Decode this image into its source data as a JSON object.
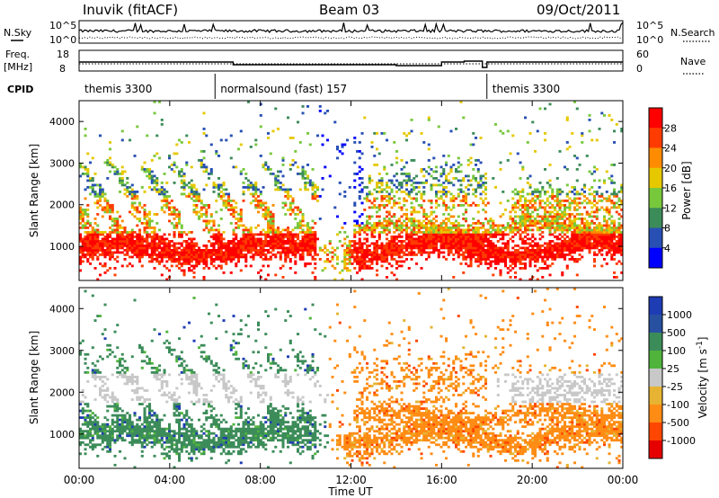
{
  "header": {
    "station": "Inuvik (fitACF)",
    "beam": "Beam 03",
    "date": "09/Oct/2011"
  },
  "top_panels": {
    "nsky_label": "N.Sky",
    "nsky_ticks": [
      "10^5",
      "10^0"
    ],
    "nsearch_label": "N.Search",
    "nsearch_ticks": [
      "10^5",
      "10^0"
    ],
    "freq_label_1": "Freq.",
    "freq_label_2": "[MHz]",
    "freq_ticks": [
      "18",
      "8"
    ],
    "nave_label": "Nave",
    "nave_ticks": [
      "60",
      "0"
    ],
    "cpid_label": "CPID",
    "cpid_segments": [
      {
        "name": "themis 3300",
        "start_hour": 0,
        "end_hour": 6
      },
      {
        "name": "normalsound (fast) 157",
        "start_hour": 6,
        "end_hour": 18
      },
      {
        "name": "themis 3300",
        "start_hour": 18,
        "end_hour": 24
      }
    ]
  },
  "chart_data": [
    {
      "type": "heatmap",
      "panel": "power",
      "ylabel": "Slant Range [km]",
      "yticks": [
        "1000",
        "2000",
        "3000",
        "4000"
      ],
      "ylim": [
        180,
        4500
      ],
      "colorbar_label": "Power [dB]",
      "colorbar_ticks": [
        "4",
        "8",
        "12",
        "16",
        "20",
        "24",
        "28"
      ],
      "colors": [
        "#0000ff",
        "#2850b4",
        "#3c8c5a",
        "#78c83c",
        "#e6c800",
        "#ff8c00",
        "#ff3c00",
        "#ff0000"
      ]
    },
    {
      "type": "heatmap",
      "panel": "velocity",
      "ylabel": "Slant Range [km]",
      "yticks": [
        "1000",
        "2000",
        "3000",
        "4000"
      ],
      "ylim": [
        180,
        4500
      ],
      "colorbar_label": "Velocity [m s^-1]",
      "colorbar_ticks": [
        "1000",
        "500",
        "100",
        "25",
        "-25",
        "-100",
        "-500",
        "-1000"
      ],
      "colors": [
        "#1e3cb4",
        "#2850a0",
        "#3c8c5a",
        "#50b43c",
        "#c8c8c8",
        "#e6b432",
        "#ff8c14",
        "#ff4600",
        "#e60000"
      ]
    }
  ],
  "xaxis": {
    "label": "Time UT",
    "ticks": [
      "00:00",
      "04:00",
      "08:00",
      "12:00",
      "16:00",
      "20:00",
      "00:00"
    ]
  }
}
